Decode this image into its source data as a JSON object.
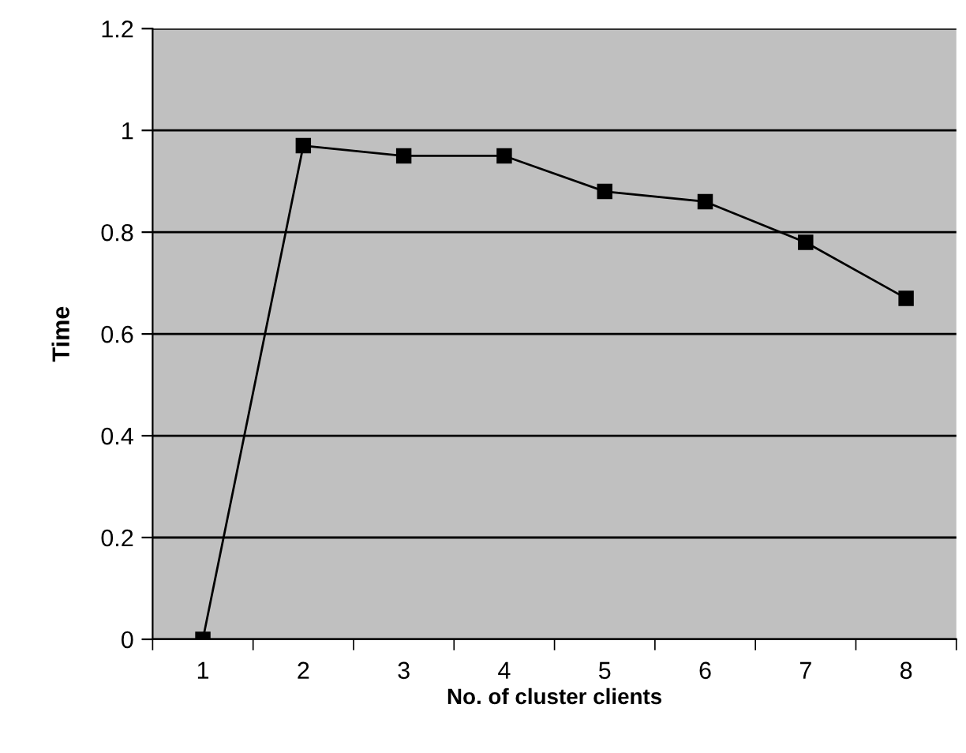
{
  "chart_data": {
    "type": "line",
    "xlabel": "No. of cluster clients",
    "ylabel": "Time",
    "categories": [
      "1",
      "2",
      "3",
      "4",
      "5",
      "6",
      "7",
      "8"
    ],
    "series": [
      {
        "color": "#000000",
        "values": [
          0,
          0.97,
          0.95,
          0.95,
          0.88,
          0.86,
          0.78,
          0.67
        ]
      }
    ],
    "ylim": [
      0,
      1.2
    ],
    "yticks": [
      0,
      0.2,
      0.4,
      0.6,
      0.8,
      1,
      1.2
    ],
    "grid": "y",
    "marker": "square",
    "line_style": "solid",
    "legend": false
  }
}
